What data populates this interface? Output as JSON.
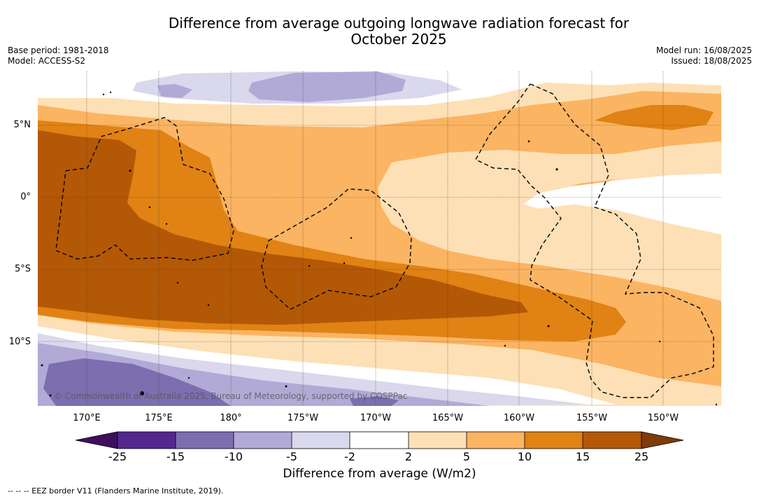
{
  "title": {
    "line1": "Difference from average outgoing longwave radiation forecast for",
    "line2": "October 2025"
  },
  "meta_left": {
    "base_period": "Base period: 1981-2018",
    "model": "Model: ACCESS-S2"
  },
  "meta_right": {
    "model_run": "Model run: 16/08/2025",
    "issued": "Issued: 18/08/2025"
  },
  "map": {
    "lat_labels": [
      "5°N",
      "0°",
      "5°S",
      "10°S"
    ],
    "lon_labels": [
      "170°E",
      "175°E",
      "180°",
      "175°W",
      "170°W",
      "165°W",
      "160°W",
      "155°W",
      "150°W"
    ],
    "copyright": "© Commonwealth of Australia 2025, Bureau of Meteorology, supported by COSPPac"
  },
  "colorbar": {
    "ticks": [
      "-25",
      "-15",
      "-10",
      "-5",
      "-2",
      "2",
      "5",
      "10",
      "15",
      "25"
    ],
    "colors": [
      "#3f0f5e",
      "#54278f",
      "#7c6eaf",
      "#b1aad6",
      "#d9d8ec",
      "#ffffff",
      "#fde0b6",
      "#fbb462",
      "#e08214",
      "#b35806",
      "#7f3b08"
    ],
    "label": "Difference from average (W/m2)"
  },
  "footer": {
    "legend": "--  --  -- EEZ border V11 (Flanders Marine Institute, 2019)."
  }
}
